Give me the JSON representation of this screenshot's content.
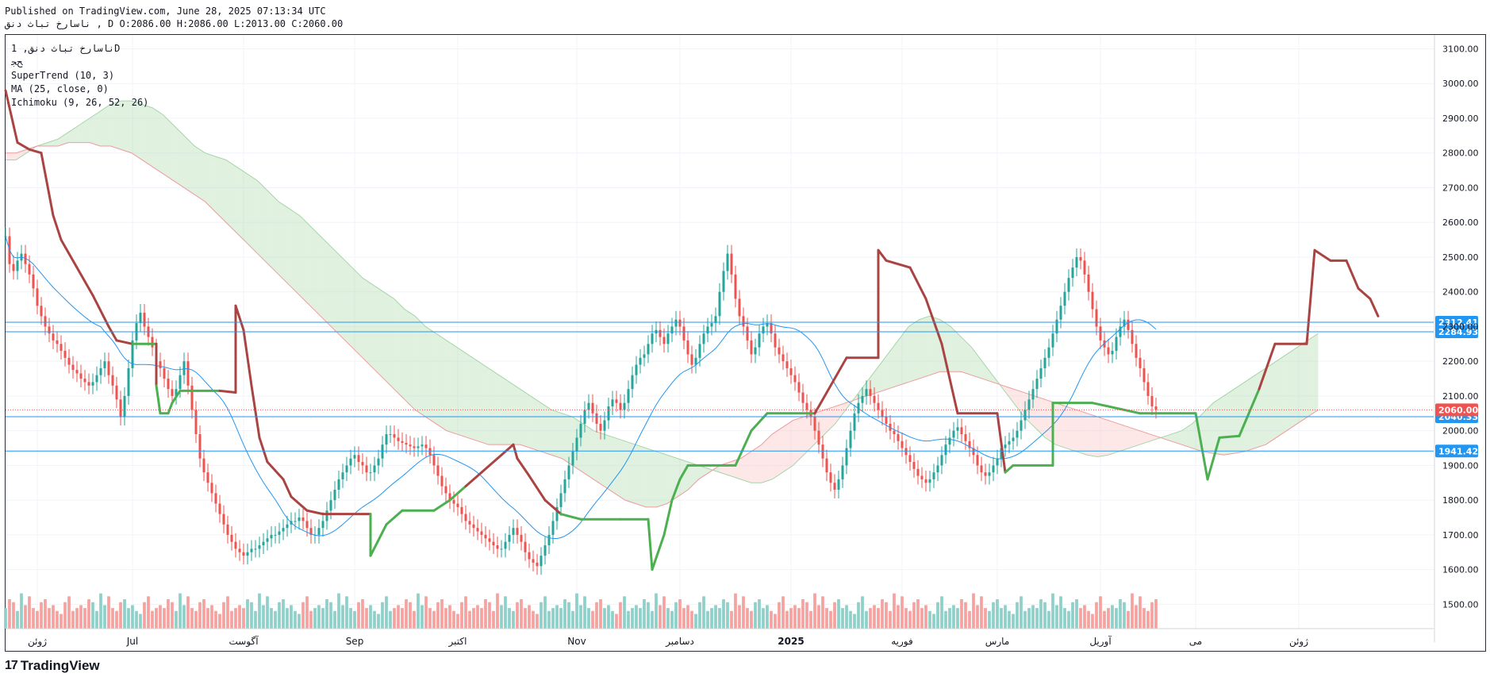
{
  "header": {
    "published": "Published on TradingView.com, June 28, 2025 07:13:34 UTC",
    "ohlc_line": "ناسارخ  تباث دنق , D O:2086.00 H:2086.00 L:2013.00 C:2060.00"
  },
  "legend": {
    "symbol": "ناسارخ  تباث دنق, 1D",
    "exchange": "ﺢﺠ",
    "supertrend": "SuperTrend (10, 3)",
    "ma": "MA (25, close, 0)",
    "ichimoku": "Ichimoku (9, 26, 52, 26)"
  },
  "footer": {
    "logo_mark": "17",
    "brand": "TradingView"
  },
  "colors": {
    "up": "#26a69a",
    "down": "#ef5350",
    "up_volume": "#8fd0c9",
    "down_volume": "#f5a3a1",
    "supertrend_up": "#4caf50",
    "supertrend_down": "#a94442",
    "ma": "#2196f3",
    "cloud_bull": "#a5d6a7",
    "cloud_bear": "#f8bcb9",
    "hline": "#2196f3",
    "last_price": "#ef5350",
    "grid": "#f0f3fa"
  },
  "chart_data": {
    "type": "candlestick",
    "title": "ناسارخ  تباث دنق, 1D",
    "ylim": [
      1430,
      3140
    ],
    "y_ticks": [
      "3100.00",
      "3000.00",
      "2900.00",
      "2800.00",
      "2700.00",
      "2600.00",
      "2500.00",
      "2400.00",
      "2300.00",
      "2200.00",
      "2100.00",
      "2000.00",
      "1900.00",
      "1800.00",
      "1700.00",
      "1600.00",
      "1500.00"
    ],
    "x_ticks": [
      {
        "label": "ژوئن",
        "index": 8
      },
      {
        "label": "Jul",
        "index": 32
      },
      {
        "label": "آگوست",
        "index": 60
      },
      {
        "label": "Sep",
        "index": 88
      },
      {
        "label": "اکتبر",
        "index": 114
      },
      {
        "label": "Nov",
        "index": 144
      },
      {
        "label": "دسامبر",
        "index": 170
      },
      {
        "label": "2025",
        "index": 198
      },
      {
        "label": "فوریه",
        "index": 226
      },
      {
        "label": "مارس",
        "index": 250
      },
      {
        "label": "آوریل",
        "index": 276
      },
      {
        "label": "می",
        "index": 300
      },
      {
        "label": "ژوئن",
        "index": 326
      }
    ],
    "closes": [
      2560,
      2480,
      2460,
      2490,
      2510,
      2480,
      2450,
      2410,
      2360,
      2330,
      2300,
      2280,
      2260,
      2250,
      2230,
      2210,
      2190,
      2175,
      2165,
      2150,
      2140,
      2130,
      2140,
      2160,
      2180,
      2200,
      2160,
      2130,
      2090,
      2040,
      2100,
      2180,
      2260,
      2310,
      2340,
      2300,
      2270,
      2240,
      2200,
      2180,
      2150,
      2120,
      2100,
      2120,
      2160,
      2200,
      2130,
      2060,
      1990,
      1920,
      1880,
      1850,
      1820,
      1790,
      1760,
      1730,
      1700,
      1680,
      1660,
      1650,
      1640,
      1650,
      1660,
      1660,
      1670,
      1680,
      1690,
      1700,
      1700,
      1710,
      1720,
      1730,
      1740,
      1740,
      1750,
      1740,
      1720,
      1700,
      1700,
      1720,
      1740,
      1770,
      1800,
      1830,
      1860,
      1880,
      1900,
      1920,
      1930,
      1910,
      1900,
      1880,
      1880,
      1900,
      1920,
      1960,
      1990,
      1990,
      1980,
      1970,
      1965,
      1960,
      1955,
      1950,
      1955,
      1960,
      1950,
      1930,
      1900,
      1870,
      1840,
      1820,
      1800,
      1790,
      1780,
      1760,
      1740,
      1730,
      1720,
      1710,
      1700,
      1690,
      1680,
      1670,
      1660,
      1660,
      1680,
      1700,
      1720,
      1700,
      1680,
      1650,
      1630,
      1620,
      1610,
      1640,
      1670,
      1700,
      1740,
      1780,
      1820,
      1860,
      1900,
      1940,
      1980,
      2020,
      2060,
      2080,
      2050,
      2020,
      2000,
      2030,
      2070,
      2090,
      2080,
      2060,
      2080,
      2120,
      2160,
      2190,
      2210,
      2220,
      2250,
      2280,
      2290,
      2270,
      2250,
      2280,
      2300,
      2320,
      2300,
      2260,
      2220,
      2190,
      2210,
      2250,
      2280,
      2300,
      2310,
      2330,
      2400,
      2460,
      2510,
      2450,
      2380,
      2330,
      2300,
      2260,
      2220,
      2240,
      2280,
      2300,
      2310,
      2280,
      2240,
      2220,
      2200,
      2180,
      2160,
      2140,
      2110,
      2080,
      2060,
      2040,
      2000,
      1960,
      1920,
      1880,
      1850,
      1830,
      1860,
      1900,
      1950,
      2000,
      2050,
      2080,
      2100,
      2120,
      2100,
      2080,
      2060,
      2040,
      2020,
      2000,
      1990,
      1970,
      1950,
      1930,
      1910,
      1890,
      1870,
      1860,
      1850,
      1860,
      1880,
      1900,
      1930,
      1960,
      1980,
      2000,
      2010,
      1990,
      1970,
      1950,
      1930,
      1900,
      1880,
      1870,
      1880,
      1900,
      1920,
      1950,
      1960,
      1970,
      1980,
      2000,
      2030,
      2060,
      2090,
      2120,
      2150,
      2180,
      2210,
      2240,
      2280,
      2320,
      2360,
      2400,
      2440,
      2470,
      2500,
      2490,
      2450,
      2400,
      2350,
      2300,
      2260,
      2240,
      2220,
      2230,
      2270,
      2300,
      2320,
      2290,
      2250,
      2210,
      2180,
      2140,
      2100,
      2070,
      2060
    ],
    "supertrend": [
      {
        "i": 0,
        "v": 2980
      },
      {
        "i": 3,
        "v": 2830
      },
      {
        "i": 6,
        "v": 2810
      },
      {
        "i": 9,
        "v": 2800
      },
      {
        "i": 12,
        "v": 2620
      },
      {
        "i": 14,
        "v": 2550
      },
      {
        "i": 18,
        "v": 2470
      },
      {
        "i": 22,
        "v": 2390
      },
      {
        "i": 26,
        "v": 2300
      },
      {
        "i": 28,
        "v": 2260
      },
      {
        "i": 32,
        "v": 2250
      },
      {
        "i": 38,
        "v": 2250
      },
      {
        "i": 38,
        "v": 2130
      },
      {
        "i": 39,
        "v": 2050
      },
      {
        "i": 41,
        "v": 2050
      },
      {
        "i": 42,
        "v": 2080
      },
      {
        "i": 44,
        "v": 2115
      },
      {
        "i": 54,
        "v": 2115
      },
      {
        "i": 58,
        "v": 2110
      },
      {
        "i": 58,
        "v": 2360
      },
      {
        "i": 60,
        "v": 2290
      },
      {
        "i": 62,
        "v": 2130
      },
      {
        "i": 64,
        "v": 1980
      },
      {
        "i": 66,
        "v": 1910
      },
      {
        "i": 70,
        "v": 1860
      },
      {
        "i": 72,
        "v": 1810
      },
      {
        "i": 76,
        "v": 1770
      },
      {
        "i": 80,
        "v": 1760
      },
      {
        "i": 92,
        "v": 1760
      },
      {
        "i": 92,
        "v": 1640
      },
      {
        "i": 96,
        "v": 1730
      },
      {
        "i": 100,
        "v": 1770
      },
      {
        "i": 108,
        "v": 1770
      },
      {
        "i": 112,
        "v": 1800
      },
      {
        "i": 116,
        "v": 1840
      },
      {
        "i": 120,
        "v": 1880
      },
      {
        "i": 124,
        "v": 1920
      },
      {
        "i": 128,
        "v": 1960
      },
      {
        "i": 129,
        "v": 1920
      },
      {
        "i": 132,
        "v": 1870
      },
      {
        "i": 136,
        "v": 1800
      },
      {
        "i": 140,
        "v": 1760
      },
      {
        "i": 145,
        "v": 1745
      },
      {
        "i": 155,
        "v": 1745
      },
      {
        "i": 162,
        "v": 1745
      },
      {
        "i": 163,
        "v": 1600
      },
      {
        "i": 166,
        "v": 1700
      },
      {
        "i": 168,
        "v": 1800
      },
      {
        "i": 170,
        "v": 1860
      },
      {
        "i": 172,
        "v": 1900
      },
      {
        "i": 184,
        "v": 1900
      },
      {
        "i": 188,
        "v": 2000
      },
      {
        "i": 192,
        "v": 2050
      },
      {
        "i": 204,
        "v": 2050
      },
      {
        "i": 212,
        "v": 2210
      },
      {
        "i": 220,
        "v": 2210
      },
      {
        "i": 220,
        "v": 2520
      },
      {
        "i": 222,
        "v": 2490
      },
      {
        "i": 228,
        "v": 2470
      },
      {
        "i": 232,
        "v": 2380
      },
      {
        "i": 236,
        "v": 2250
      },
      {
        "i": 240,
        "v": 2050
      },
      {
        "i": 250,
        "v": 2050
      },
      {
        "i": 252,
        "v": 1880
      },
      {
        "i": 254,
        "v": 1900
      },
      {
        "i": 264,
        "v": 1900
      },
      {
        "i": 264,
        "v": 2080
      },
      {
        "i": 266,
        "v": 2080
      },
      {
        "i": 274,
        "v": 2080
      },
      {
        "i": 286,
        "v": 2050
      },
      {
        "i": 300,
        "v": 2050
      },
      {
        "i": 303,
        "v": 1860
      },
      {
        "i": 306,
        "v": 1980
      },
      {
        "i": 311,
        "v": 1985
      },
      {
        "i": 316,
        "v": 2120
      },
      {
        "i": 320,
        "v": 2250
      },
      {
        "i": 328,
        "v": 2250
      },
      {
        "i": 330,
        "v": 2520
      },
      {
        "i": 334,
        "v": 2490
      },
      {
        "i": 338,
        "v": 2490
      },
      {
        "i": 341,
        "v": 2410
      },
      {
        "i": 344,
        "v": 2380
      },
      {
        "i": 346,
        "v": 2330
      }
    ],
    "ichimoku_span_a": [
      2780,
      2780,
      2800,
      2820,
      2830,
      2840,
      2860,
      2880,
      2900,
      2920,
      2940,
      2950,
      2950,
      2940,
      2930,
      2910,
      2880,
      2850,
      2820,
      2800,
      2790,
      2780,
      2760,
      2740,
      2720,
      2690,
      2660,
      2640,
      2620,
      2590,
      2560,
      2530,
      2500,
      2470,
      2440,
      2420,
      2400,
      2380,
      2350,
      2330,
      2300,
      2280,
      2260,
      2240,
      2220,
      2200,
      2180,
      2160,
      2140,
      2120,
      2100,
      2080,
      2060,
      2050,
      2040,
      2020,
      2000,
      1990,
      1980,
      1970,
      1960,
      1950,
      1940,
      1930,
      1920,
      1910,
      1900,
      1890,
      1880,
      1870,
      1860,
      1850,
      1850,
      1860,
      1880,
      1900,
      1930,
      1960,
      1990,
      2020,
      2060,
      2100,
      2140,
      2180,
      2220,
      2260,
      2300,
      2320,
      2330,
      2320,
      2300,
      2270,
      2240,
      2200,
      2160,
      2120,
      2080,
      2040,
      2010,
      1980,
      1960,
      1950,
      1940,
      1930,
      1925,
      1930,
      1940,
      1950,
      1960,
      1970,
      1980,
      1990,
      2000,
      2020,
      2050,
      2080,
      2100,
      2120,
      2140,
      2160,
      2180,
      2200,
      2220,
      2240,
      2260,
      2280
    ],
    "ichimoku_span_b": [
      2800,
      2800,
      2810,
      2820,
      2820,
      2820,
      2830,
      2830,
      2830,
      2820,
      2820,
      2810,
      2800,
      2780,
      2760,
      2740,
      2720,
      2700,
      2680,
      2660,
      2630,
      2600,
      2570,
      2540,
      2510,
      2480,
      2450,
      2420,
      2390,
      2360,
      2330,
      2300,
      2270,
      2240,
      2210,
      2180,
      2150,
      2120,
      2090,
      2060,
      2040,
      2020,
      2000,
      1990,
      1980,
      1970,
      1960,
      1960,
      1960,
      1960,
      1950,
      1940,
      1930,
      1920,
      1900,
      1880,
      1860,
      1840,
      1820,
      1800,
      1790,
      1780,
      1780,
      1790,
      1810,
      1830,
      1860,
      1880,
      1900,
      1910,
      1920,
      1940,
      1960,
      1990,
      2010,
      2030,
      2040,
      2050,
      2060,
      2070,
      2080,
      2090,
      2100,
      2110,
      2120,
      2130,
      2140,
      2150,
      2160,
      2170,
      2170,
      2170,
      2160,
      2150,
      2140,
      2130,
      2120,
      2110,
      2100,
      2090,
      2080,
      2070,
      2060,
      2050,
      2040,
      2030,
      2020,
      2010,
      2000,
      1990,
      1980,
      1970,
      1960,
      1950,
      1940,
      1935,
      1930,
      1935,
      1940,
      1950,
      1960,
      1980,
      2000,
      2020,
      2040,
      2060
    ],
    "volume_sample": [
      0.35,
      0.5,
      0.45,
      0.3,
      0.6,
      0.4,
      0.55,
      0.35,
      0.3,
      0.45,
      0.5,
      0.35,
      0.4,
      0.3,
      0.25,
      0.45,
      0.55,
      0.3,
      0.35,
      0.4
    ],
    "hlines": [
      {
        "value": 2312.41,
        "label": "2312.41"
      },
      {
        "value": 2284.93,
        "label": "2284.93"
      },
      {
        "value": 2040.33,
        "label": "2040.33"
      },
      {
        "value": 1941.42,
        "label": "1941.42"
      }
    ],
    "last_price": {
      "value": 2060.0,
      "label": "2060.00"
    }
  }
}
